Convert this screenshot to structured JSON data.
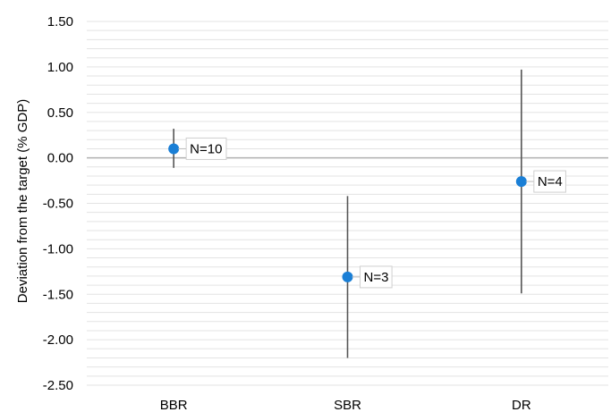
{
  "chart_data": {
    "type": "scatter",
    "ylabel": "Deviation from the target (% GDP)",
    "xlabel": "",
    "ylim": [
      -2.5,
      1.5
    ],
    "y_major_step": 0.5,
    "y_minor_step": 0.1,
    "y_tick_labels": [
      "1.50",
      "1.00",
      "0.50",
      "0.00",
      "-0.50",
      "-1.00",
      "-1.50",
      "-2.00",
      "-2.50"
    ],
    "categories": [
      "BBR",
      "SBR",
      "DR"
    ],
    "points": [
      {
        "category": "BBR",
        "y": 0.1,
        "low": -0.11,
        "high": 0.32,
        "label": "N=10"
      },
      {
        "category": "SBR",
        "y": -1.31,
        "low": -2.2,
        "high": -0.42,
        "label": "N=3"
      },
      {
        "category": "DR",
        "y": -0.26,
        "low": -1.49,
        "high": 0.97,
        "label": "N=4"
      }
    ],
    "grid": true,
    "legend": "none",
    "colors": {
      "marker": "#1a7fd6",
      "error_bar": "#555555",
      "grid": "#e3e3e3",
      "zero_line": "#b0b0b0"
    }
  }
}
